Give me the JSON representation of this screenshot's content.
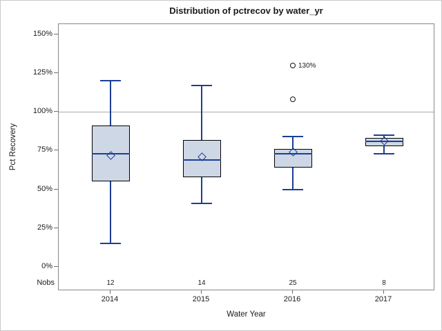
{
  "chart_data": {
    "type": "boxplot",
    "title": "Distribution of pctrecov by water_yr",
    "xlabel": "Water Year",
    "ylabel": "Pct Recovery",
    "ylim": [
      0,
      150
    ],
    "ytick_values": [
      0,
      25,
      50,
      75,
      100,
      125,
      150
    ],
    "ytick_labels": [
      "0%",
      "25%",
      "50%",
      "75%",
      "100%",
      "125%",
      "150%"
    ],
    "reference_line": 100,
    "grid": false,
    "nobs_label": "Nobs",
    "groups": [
      {
        "label": "2014",
        "nobs": "12",
        "min": 15,
        "q1": 55,
        "median": 73,
        "mean": 72,
        "q3": 91,
        "max": 120,
        "outliers": []
      },
      {
        "label": "2015",
        "nobs": "14",
        "min": 41,
        "q1": 58,
        "median": 69,
        "mean": 71,
        "q3": 82,
        "max": 117,
        "outliers": []
      },
      {
        "label": "2016",
        "nobs": "25",
        "min": 50,
        "q1": 64,
        "median": 73,
        "mean": 74,
        "q3": 76,
        "max": 84,
        "outliers": [
          {
            "value": 108,
            "label": ""
          },
          {
            "value": 130,
            "label": "130%"
          }
        ]
      },
      {
        "label": "2017",
        "nobs": "8",
        "min": 73,
        "q1": 78,
        "median": 81,
        "mean": 81,
        "q3": 83,
        "max": 85,
        "outliers": []
      }
    ],
    "colors": {
      "box_fill": "#cdd7e5",
      "line": "#1c3d94",
      "box_border": "#000000",
      "reference": "#a9a9a9",
      "outlier": "#111111",
      "axis_border": "#878787"
    }
  }
}
